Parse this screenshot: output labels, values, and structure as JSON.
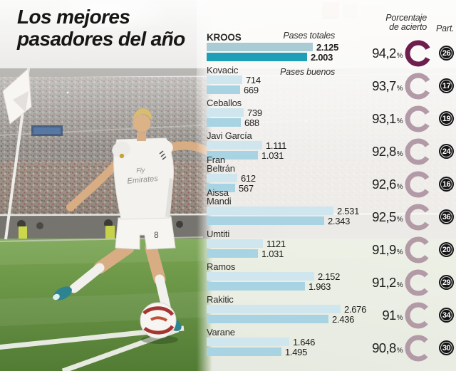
{
  "title": {
    "line1": "Los mejores",
    "line2": "pasadores del año"
  },
  "headers": {
    "total": "Pases totales",
    "good": "Pases buenos",
    "accuracy_line1": "Porcentaje",
    "accuracy_line2": "de acierto",
    "participation": "Part."
  },
  "chart_data": {
    "type": "bar",
    "orientation": "horizontal",
    "series_labels": [
      "Pases totales",
      "Pases buenos"
    ],
    "max_value": 2676,
    "players": [
      {
        "name": "KROOS",
        "total": 2125,
        "good": 2003,
        "total_label": "2.125",
        "good_label": "2.003",
        "accuracy_pct": 94.2,
        "accuracy_label": "94,2",
        "participation": "26",
        "highlight": true
      },
      {
        "name": "Kovacic",
        "total": 714,
        "good": 669,
        "total_label": "714",
        "good_label": "669",
        "accuracy_pct": 93.7,
        "accuracy_label": "93,7",
        "participation": "17",
        "highlight": false
      },
      {
        "name": "Ceballos",
        "total": 739,
        "good": 688,
        "total_label": "739",
        "good_label": "688",
        "accuracy_pct": 93.1,
        "accuracy_label": "93,1",
        "participation": "19",
        "highlight": false
      },
      {
        "name": "Javi García",
        "total": 1111,
        "good": 1031,
        "total_label": "1.111",
        "good_label": "1.031",
        "accuracy_pct": 92.8,
        "accuracy_label": "92,8",
        "participation": "24",
        "highlight": false
      },
      {
        "name": "Fran Beltrán",
        "total": 612,
        "good": 567,
        "total_label": "612",
        "good_label": "567",
        "accuracy_pct": 92.6,
        "accuracy_label": "92,6",
        "participation": "16",
        "highlight": false
      },
      {
        "name": "Aissa Mandi",
        "total": 2531,
        "good": 2343,
        "total_label": "2.531",
        "good_label": "2.343",
        "accuracy_pct": 92.5,
        "accuracy_label": "92,5",
        "participation": "36",
        "highlight": false
      },
      {
        "name": "Umtiti",
        "total": 1121,
        "good": 1031,
        "total_label": "1121",
        "good_label": "1.031",
        "accuracy_pct": 91.9,
        "accuracy_label": "91,9",
        "participation": "20",
        "highlight": false
      },
      {
        "name": "Ramos",
        "total": 2152,
        "good": 1963,
        "total_label": "2.152",
        "good_label": "1.963",
        "accuracy_pct": 91.2,
        "accuracy_label": "91,2",
        "participation": "29",
        "highlight": false
      },
      {
        "name": "Rakitic",
        "total": 2676,
        "good": 2436,
        "total_label": "2.676",
        "good_label": "2.436",
        "accuracy_pct": 91.0,
        "accuracy_label": "91",
        "participation": "34",
        "highlight": false
      },
      {
        "name": "Varane",
        "total": 1646,
        "good": 1495,
        "total_label": "1.646",
        "good_label": "1.495",
        "accuracy_pct": 90.8,
        "accuracy_label": "90,8",
        "participation": "30",
        "highlight": false
      }
    ]
  },
  "colors": {
    "bar_total": "#cfe6ef",
    "bar_good": "#a7d3e2",
    "bar_total_highlight": "#a9ccd4",
    "bar_good_highlight": "#1e9fb6",
    "donut": "#b29aa6",
    "donut_highlight": "#6d1e4e",
    "badge_bg": "#141414",
    "badge_text": "#ffffff",
    "percent_text": "#1b1b19",
    "watermark": "#c23a33"
  },
  "photo": {
    "shirt_line1": "Fly",
    "shirt_line2": "Emirates",
    "shorts_number": "8"
  }
}
